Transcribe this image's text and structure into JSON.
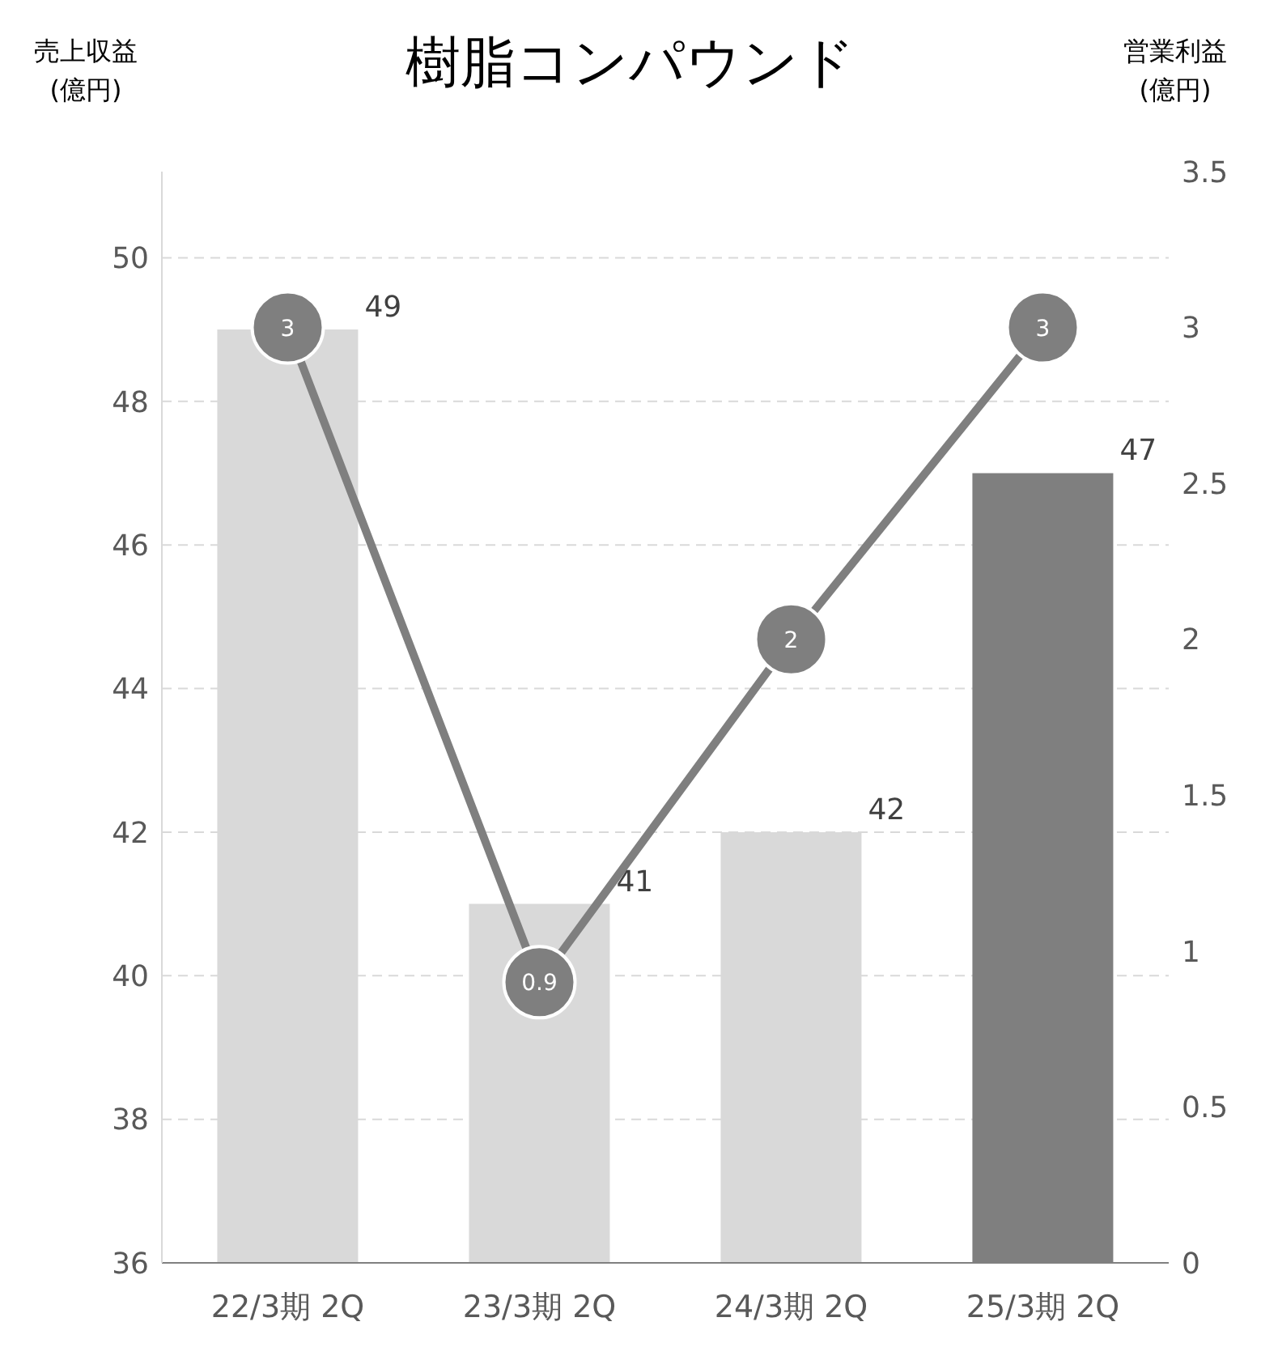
{
  "chart_data": {
    "type": "bar",
    "title": "樹脂コンパウンド",
    "ylabel": "売上収益\n(億円)",
    "y2label": "営業利益\n(億円)",
    "categories": [
      "22/3期 2Q",
      "23/3期 2Q",
      "24/3期 2Q",
      "25/3期 2Q"
    ],
    "series": [
      {
        "colors": [
          "#d9d9d9",
          "#d9d9d9",
          "#d9d9d9",
          "#7f7f7f"
        ],
        "values": [
          49,
          41,
          42,
          47
        ]
      },
      {
        "type": "line",
        "axis": "y2",
        "color": "#7f7f7f",
        "values": [
          3,
          0.9,
          2,
          3
        ]
      }
    ],
    "ylim": [
      36,
      51.2
    ],
    "yticks": [
      36,
      38,
      40,
      42,
      44,
      46,
      48,
      50
    ],
    "y2lim": [
      0,
      3.5
    ],
    "y2ticks": [
      0,
      0.5,
      1,
      1.5,
      2,
      2.5,
      3,
      3.5
    ],
    "grid": "y",
    "legend": false,
    "marker": "circle",
    "line_style": "solid",
    "data_labels": true
  }
}
